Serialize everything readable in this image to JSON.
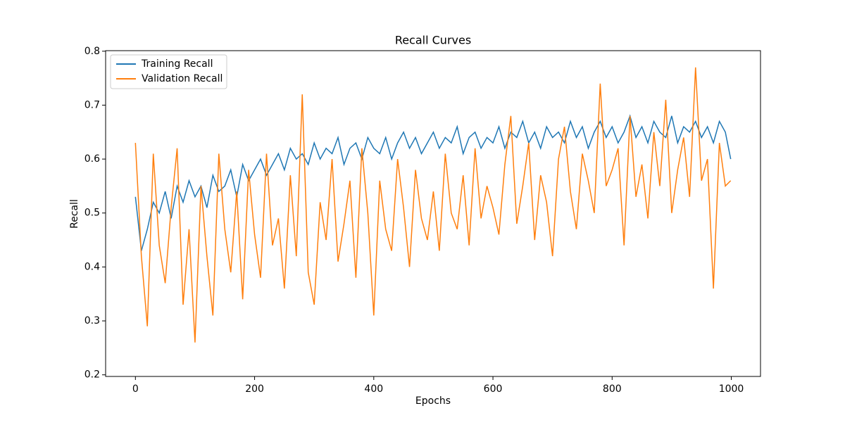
{
  "chart_data": {
    "type": "line",
    "title": "Recall Curves",
    "x_label": "Epochs",
    "y_label": "Recall",
    "x": [
      0,
      10,
      20,
      30,
      40,
      50,
      60,
      70,
      80,
      90,
      100,
      110,
      120,
      130,
      140,
      150,
      160,
      170,
      180,
      190,
      200,
      210,
      220,
      230,
      240,
      250,
      260,
      270,
      280,
      290,
      300,
      310,
      320,
      330,
      340,
      350,
      360,
      370,
      380,
      390,
      400,
      410,
      420,
      430,
      440,
      450,
      460,
      470,
      480,
      490,
      500,
      510,
      520,
      530,
      540,
      550,
      560,
      570,
      580,
      590,
      600,
      610,
      620,
      630,
      640,
      650,
      660,
      670,
      680,
      690,
      700,
      710,
      720,
      730,
      740,
      750,
      760,
      770,
      780,
      790,
      800,
      810,
      820,
      830,
      840,
      850,
      860,
      870,
      880,
      890,
      900,
      910,
      920,
      930,
      940,
      950,
      960,
      970,
      980,
      990,
      999
    ],
    "series": [
      {
        "name": "Training Recall",
        "color": "#1f77b4",
        "values": [
          0.53,
          0.43,
          0.47,
          0.52,
          0.5,
          0.54,
          0.49,
          0.55,
          0.52,
          0.56,
          0.53,
          0.55,
          0.51,
          0.57,
          0.54,
          0.55,
          0.58,
          0.53,
          0.59,
          0.56,
          0.58,
          0.6,
          0.57,
          0.59,
          0.61,
          0.58,
          0.62,
          0.6,
          0.61,
          0.59,
          0.63,
          0.6,
          0.62,
          0.61,
          0.64,
          0.59,
          0.62,
          0.63,
          0.6,
          0.64,
          0.62,
          0.61,
          0.64,
          0.6,
          0.63,
          0.65,
          0.62,
          0.64,
          0.61,
          0.63,
          0.65,
          0.62,
          0.64,
          0.63,
          0.66,
          0.61,
          0.64,
          0.65,
          0.62,
          0.64,
          0.63,
          0.66,
          0.62,
          0.65,
          0.64,
          0.67,
          0.63,
          0.65,
          0.62,
          0.66,
          0.64,
          0.65,
          0.63,
          0.67,
          0.64,
          0.66,
          0.62,
          0.65,
          0.67,
          0.64,
          0.66,
          0.63,
          0.65,
          0.68,
          0.64,
          0.66,
          0.63,
          0.67,
          0.65,
          0.64,
          0.68,
          0.63,
          0.66,
          0.65,
          0.67,
          0.64,
          0.66,
          0.63,
          0.67,
          0.65,
          0.6
        ]
      },
      {
        "name": "Validation Recall",
        "color": "#ff7f0e",
        "values": [
          0.63,
          0.42,
          0.29,
          0.61,
          0.44,
          0.37,
          0.51,
          0.62,
          0.33,
          0.47,
          0.26,
          0.55,
          0.42,
          0.31,
          0.61,
          0.47,
          0.39,
          0.54,
          0.34,
          0.58,
          0.46,
          0.38,
          0.61,
          0.44,
          0.49,
          0.36,
          0.57,
          0.42,
          0.72,
          0.39,
          0.33,
          0.52,
          0.45,
          0.6,
          0.41,
          0.48,
          0.56,
          0.38,
          0.62,
          0.5,
          0.31,
          0.56,
          0.47,
          0.43,
          0.6,
          0.51,
          0.4,
          0.58,
          0.49,
          0.45,
          0.54,
          0.43,
          0.61,
          0.5,
          0.47,
          0.57,
          0.44,
          0.62,
          0.49,
          0.55,
          0.51,
          0.46,
          0.59,
          0.68,
          0.48,
          0.55,
          0.63,
          0.45,
          0.57,
          0.52,
          0.42,
          0.6,
          0.66,
          0.54,
          0.47,
          0.61,
          0.56,
          0.5,
          0.74,
          0.55,
          0.58,
          0.62,
          0.44,
          0.68,
          0.53,
          0.59,
          0.49,
          0.65,
          0.55,
          0.71,
          0.5,
          0.58,
          0.64,
          0.53,
          0.77,
          0.56,
          0.6,
          0.36,
          0.63,
          0.55,
          0.56
        ]
      }
    ],
    "xlim": [
      -50,
      1049
    ],
    "xticks": [
      0,
      200,
      400,
      600,
      800,
      1000
    ],
    "ylim": [
      0.197,
      0.801
    ],
    "yticks": [
      0.2,
      0.3,
      0.4,
      0.5,
      0.6,
      0.7,
      0.8
    ],
    "legend": "upper left"
  }
}
